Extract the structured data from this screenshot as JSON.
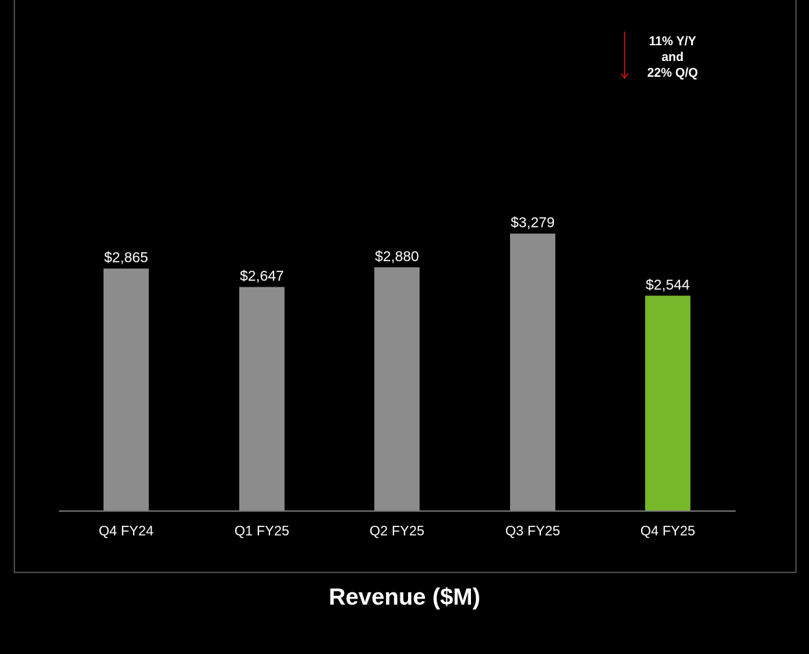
{
  "chart_data": {
    "type": "bar",
    "title": "Revenue ($M)",
    "categories": [
      "Q4 FY24",
      "Q1 FY25",
      "Q2 FY25",
      "Q3 FY25",
      "Q4 FY25"
    ],
    "values": [
      2865,
      2647,
      2880,
      3279,
      2544
    ],
    "value_labels": [
      "$2,865",
      "$2,647",
      "$2,880",
      "$3,279",
      "$2,544"
    ],
    "highlight_index": 4,
    "ylim": [
      0,
      3800
    ],
    "grid": false,
    "annotation": {
      "lines": [
        "11% Y/Y",
        "and",
        "22% Q/Q"
      ],
      "arrow": "down",
      "target": "Q4 FY25"
    }
  },
  "colors": {
    "background": "#000000",
    "bar": "#8c8c8c",
    "highlight_bar": "#76b82a",
    "axis": "#7a7a7a",
    "arrow": "#e01010",
    "text": "#ffffff"
  }
}
